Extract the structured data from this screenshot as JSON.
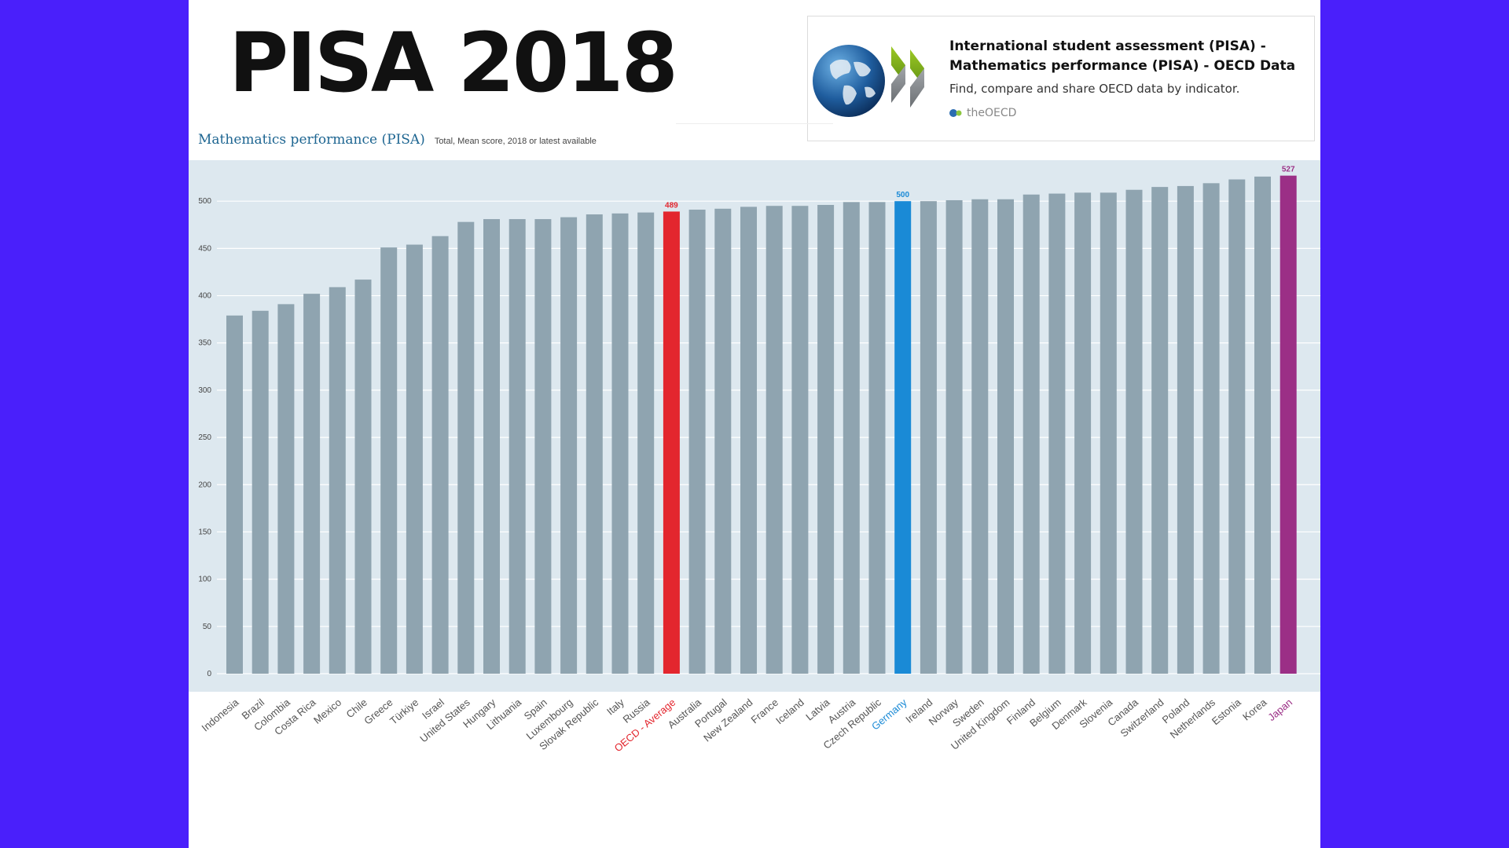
{
  "slide": {
    "title": "PISA 2018"
  },
  "link_card": {
    "title": "International student assessment (PISA) - Mathematics performance (PISA) - OECD Data",
    "description": "Find, compare and share OECD data by indicator.",
    "source": "theOECD",
    "logo_icon": "oecd-globe-logo-icon"
  },
  "chart_data": {
    "type": "bar",
    "title": "Mathematics performance (PISA)",
    "subtitle": "Total, Mean score, 2018 or latest available",
    "xlabel": "",
    "ylabel": "",
    "ylim": [
      0,
      550
    ],
    "yticks": [
      0,
      50,
      100,
      150,
      200,
      250,
      300,
      350,
      400,
      450,
      500
    ],
    "grid": true,
    "categories": [
      "Indonesia",
      "Brazil",
      "Colombia",
      "Costa Rica",
      "Mexico",
      "Chile",
      "Greece",
      "Türkiye",
      "Israel",
      "United States",
      "Hungary",
      "Lithuania",
      "Spain",
      "Luxembourg",
      "Slovak Republic",
      "Italy",
      "Russia",
      "OECD - Average",
      "Australia",
      "Portugal",
      "New Zealand",
      "France",
      "Iceland",
      "Latvia",
      "Austria",
      "Czech Republic",
      "Germany",
      "Ireland",
      "Norway",
      "Sweden",
      "United Kingdom",
      "Finland",
      "Belgium",
      "Denmark",
      "Slovenia",
      "Canada",
      "Switzerland",
      "Poland",
      "Netherlands",
      "Estonia",
      "Korea",
      "Japan"
    ],
    "values": [
      379,
      384,
      391,
      402,
      409,
      417,
      451,
      454,
      463,
      478,
      481,
      481,
      481,
      483,
      486,
      487,
      488,
      489,
      491,
      492,
      494,
      495,
      495,
      496,
      499,
      499,
      500,
      500,
      501,
      502,
      502,
      507,
      508,
      509,
      509,
      512,
      515,
      516,
      519,
      523,
      526,
      527
    ],
    "highlights": [
      {
        "category": "OECD - Average",
        "color": "#e3262e",
        "label": "489"
      },
      {
        "category": "Germany",
        "color": "#1a8ad6",
        "label": "500"
      },
      {
        "category": "Japan",
        "color": "#9b2f86",
        "label": "527"
      }
    ],
    "colors": {
      "default_bar": "#8fa4b0",
      "plot_background": "#dde8ef",
      "grid": "#ffffff",
      "tick_label": "#444444",
      "category_label": "#555555"
    }
  }
}
